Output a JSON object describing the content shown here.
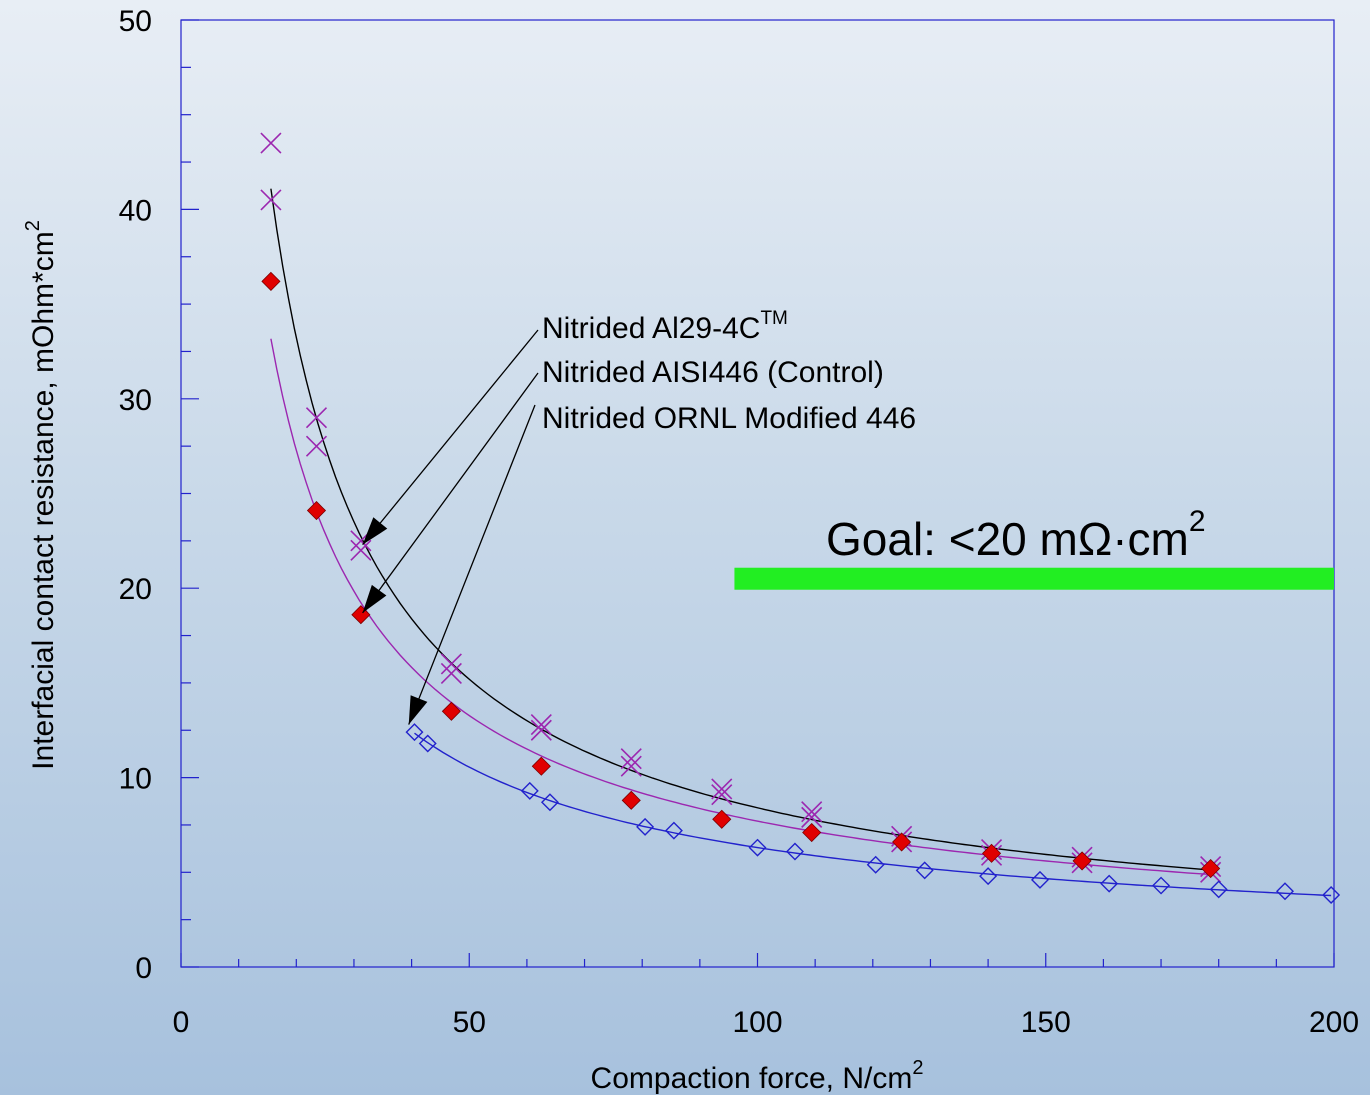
{
  "chart_data": {
    "type": "scatter",
    "xlabel": "Compaction force, N/cm",
    "xlabel_sup": "2",
    "ylabel": "Interfacial contact resistance, mOhm*cm",
    "ylabel_sup": "2",
    "xlim": [
      0,
      200
    ],
    "ylim": [
      0,
      50
    ],
    "x_ticks": [
      0,
      50,
      100,
      150,
      200
    ],
    "y_ticks": [
      0,
      10,
      20,
      30,
      40,
      50
    ],
    "x_tick_labels": [
      "0",
      "50",
      "100",
      "150",
      "200"
    ],
    "y_tick_labels": [
      "0",
      "10",
      "20",
      "30",
      "40",
      "50"
    ],
    "grid": false,
    "series": [
      {
        "name": "Nitrided Al29-4C",
        "marker": "x",
        "color": "#9c27b0",
        "line_color": "#000000",
        "x": [
          15.6,
          15.6,
          23.5,
          23.5,
          31.2,
          31.2,
          46.9,
          46.9,
          62.5,
          62.5,
          78.1,
          78.1,
          93.8,
          93.8,
          109.4,
          109.4,
          125,
          125,
          140.6,
          140.6,
          156.3,
          156.3,
          178.6,
          178.6
        ],
        "y": [
          43.5,
          40.5,
          29.0,
          27.5,
          22.5,
          22.0,
          16.0,
          15.5,
          12.8,
          12.5,
          11.0,
          10.6,
          9.4,
          9.1,
          8.2,
          7.9,
          6.9,
          6.6,
          6.2,
          5.9,
          5.8,
          5.5,
          5.3,
          5.0
        ]
      },
      {
        "name": "Nitrided AISI446 (Control)",
        "marker": "diamond-filled",
        "color": "#e00000",
        "line_color": "#9c27b0",
        "x": [
          15.6,
          23.5,
          31.2,
          46.9,
          62.5,
          78.1,
          93.8,
          109.4,
          125,
          140.6,
          156.3,
          178.6
        ],
        "y": [
          36.2,
          24.1,
          18.6,
          13.5,
          10.6,
          8.8,
          7.8,
          7.1,
          6.6,
          6.0,
          5.6,
          5.2
        ]
      },
      {
        "name": "Nitrided ORNL Modified 446",
        "marker": "diamond-open",
        "color": "#2222cc",
        "line_color": "#2222cc",
        "x": [
          40.5,
          42.8,
          60.5,
          64,
          80.5,
          85.5,
          100,
          106.5,
          120.5,
          129,
          140,
          149,
          161,
          170,
          180,
          191.5,
          199.5
        ],
        "y": [
          12.4,
          11.8,
          9.3,
          8.7,
          7.4,
          7.2,
          6.3,
          6.1,
          5.4,
          5.1,
          4.8,
          4.6,
          4.4,
          4.3,
          4.1,
          4.0,
          3.8
        ]
      }
    ],
    "annotations": {
      "label_1": "Nitrided Al29-4C",
      "label_1_sup": "TM",
      "label_2": "Nitrided AISI446 (Control)",
      "label_3": "Nitrided ORNL Modified 446"
    },
    "goal": {
      "text": "Goal: <20 mΩ·cm",
      "text_sup": "2",
      "value": 20.5,
      "x_start": 96,
      "x_end": 200,
      "color": "#22ee22"
    },
    "frame_color": "#2222cc"
  }
}
